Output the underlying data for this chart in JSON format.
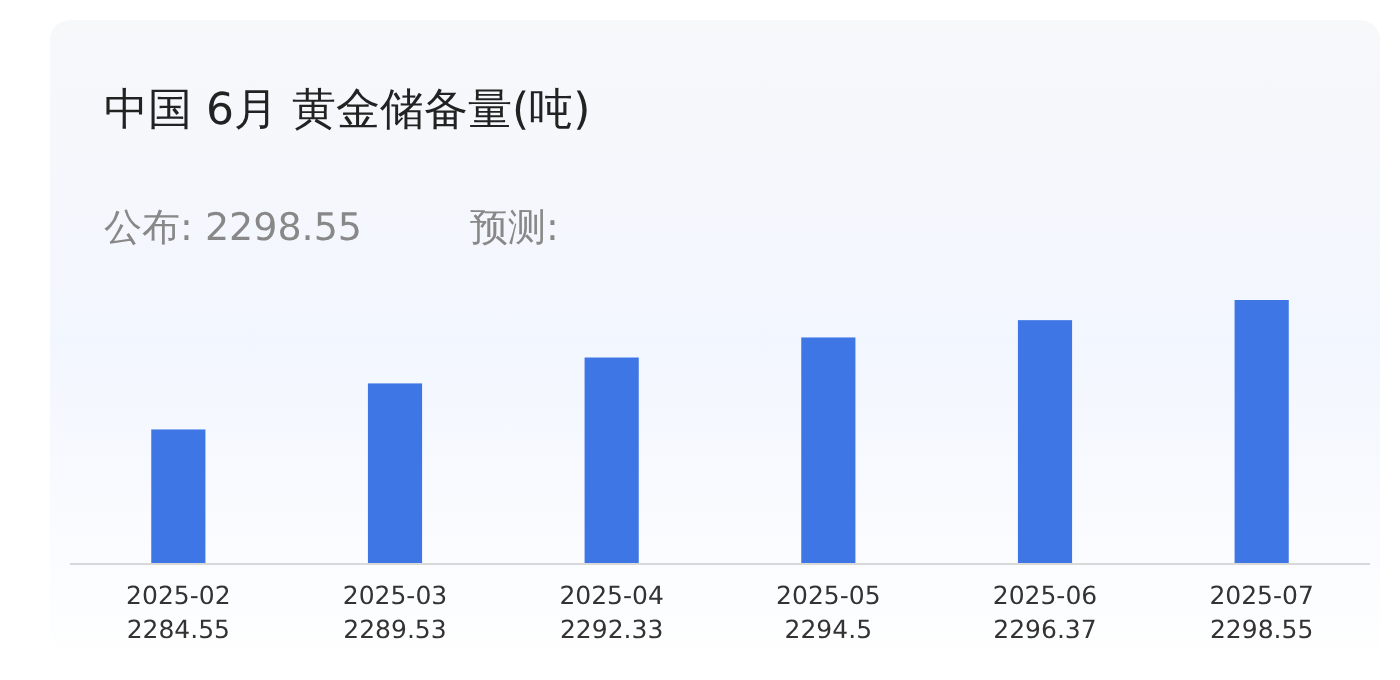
{
  "chart_data": {
    "type": "bar",
    "title": "中国 6月 黄金储备量(吨)",
    "annotations": [
      "公布: 2298.55",
      "预测:"
    ],
    "categories": [
      "2025-02",
      "2025-03",
      "2025-04",
      "2025-05",
      "2025-06",
      "2025-07"
    ],
    "values": [
      2284.55,
      2289.53,
      2292.33,
      2294.5,
      2296.37,
      2298.55
    ],
    "color": "#3f76e6",
    "ylim": [
      2270,
      2298.55
    ],
    "data_labels": true,
    "tick_labels": "x"
  }
}
